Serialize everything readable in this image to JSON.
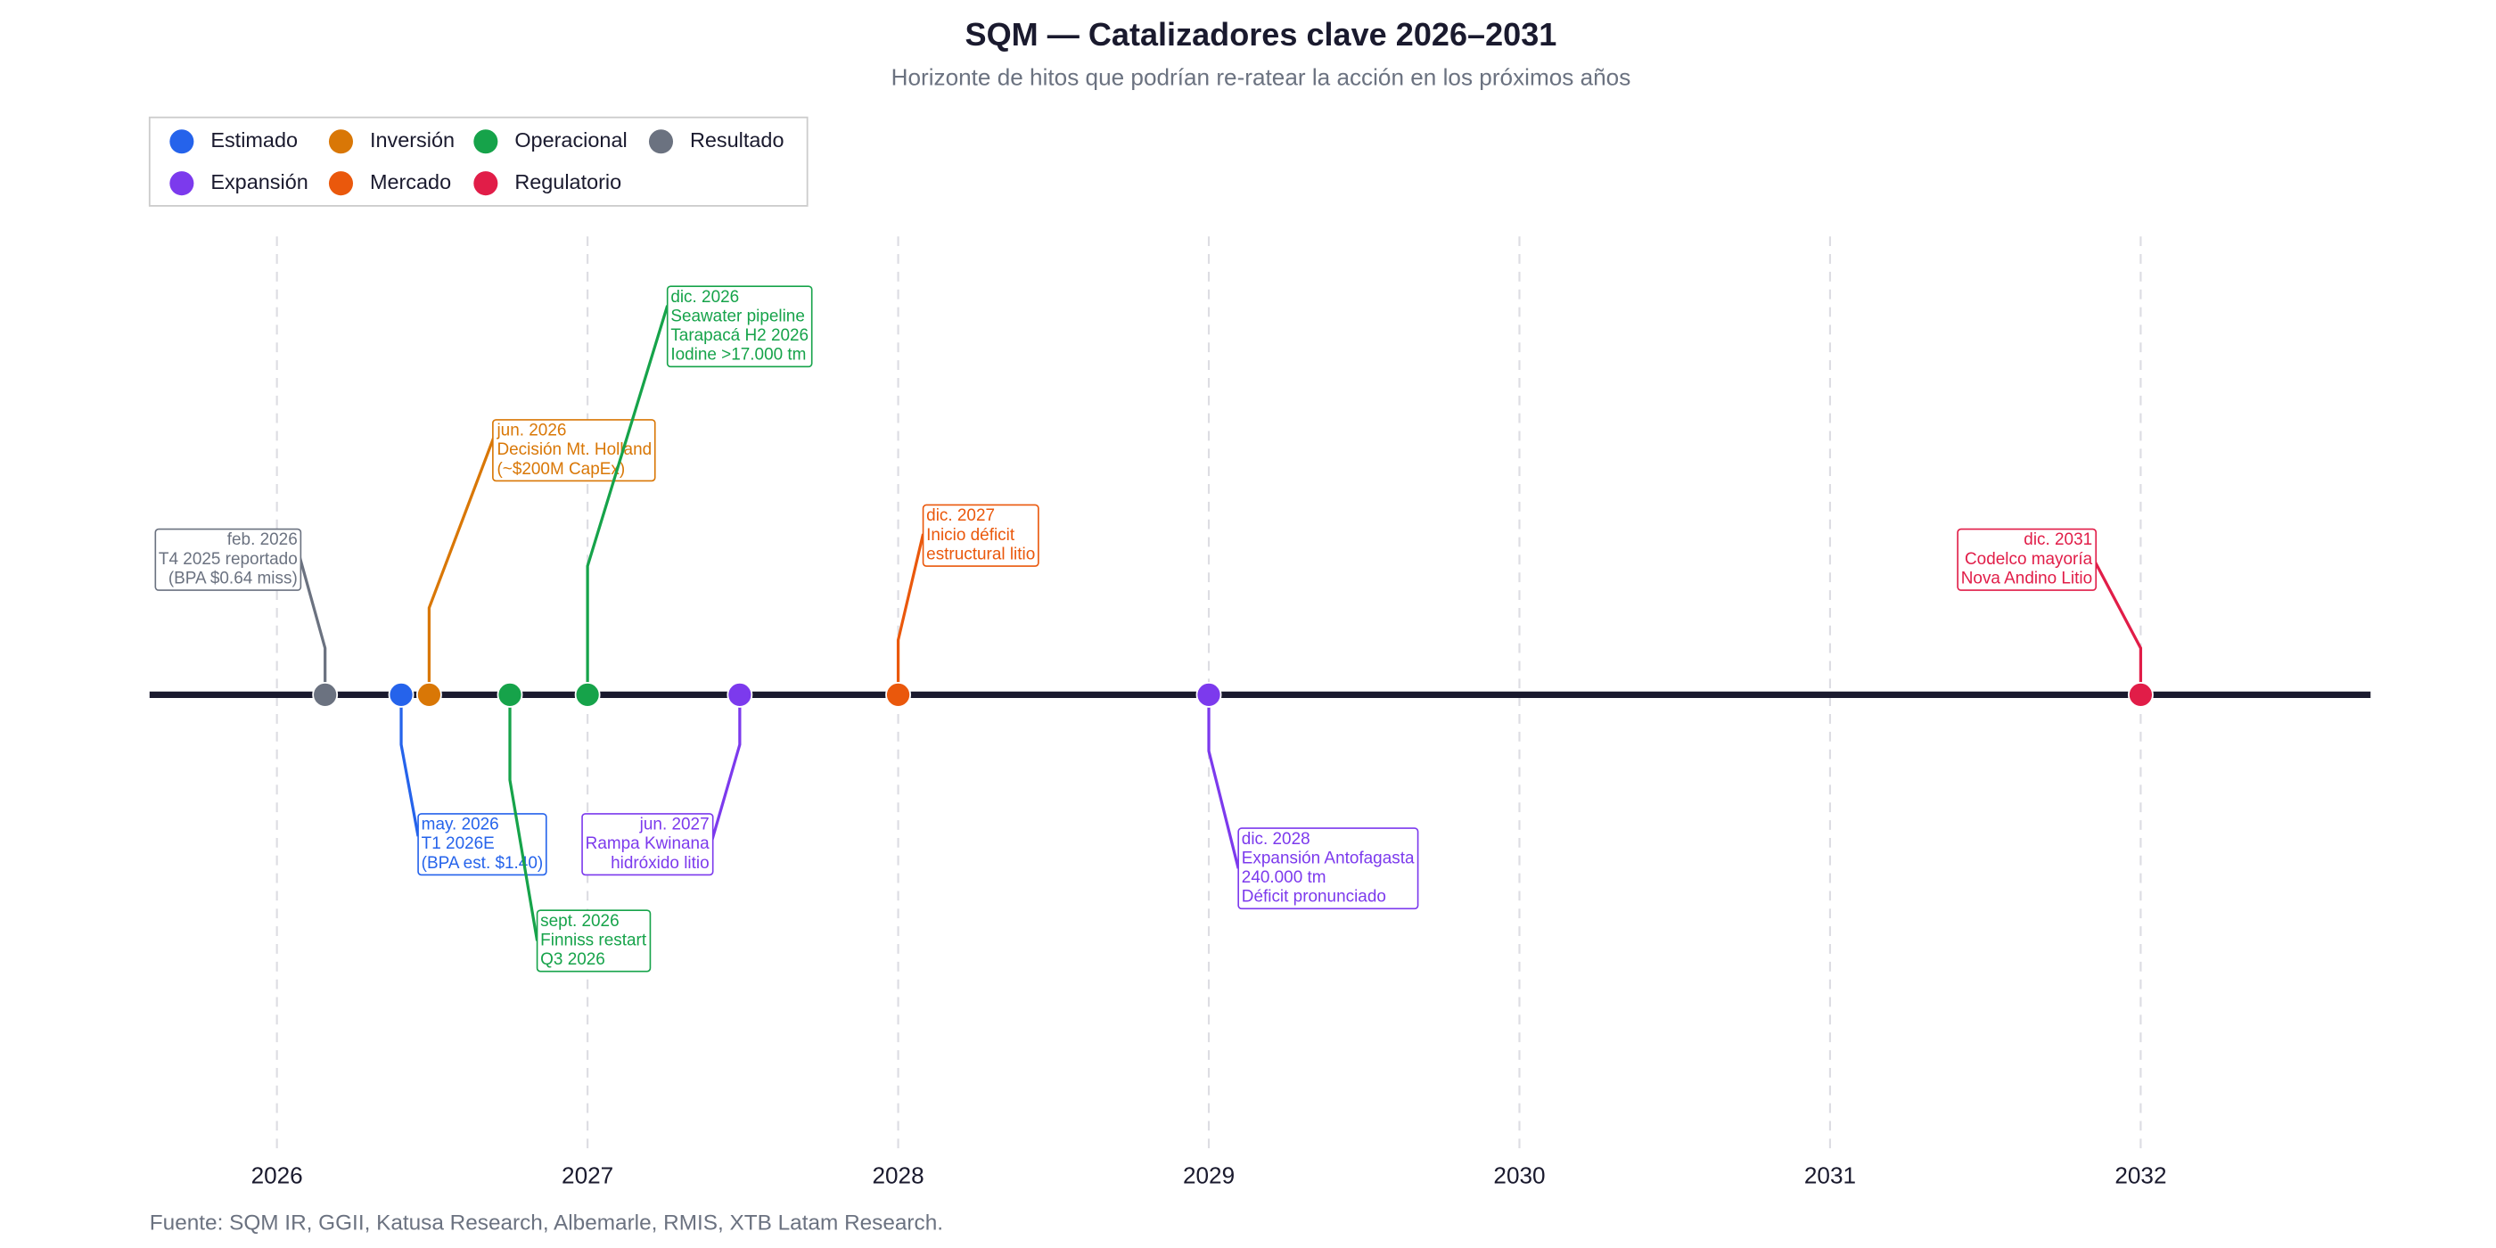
{
  "chart_data": {
    "type": "timeline",
    "title": "SQM — Catalizadores clave 2026–2031",
    "subtitle": "Horizonte de hitos que podrían re-ratear la acción en los próximos años",
    "source": "Fuente: SQM IR, GGII, Katusa Research, Albemarle, RMIS, XTB Latam Research.",
    "xlim": [
      2025.59,
      2032.74
    ],
    "xticks": [
      2026,
      2027,
      2028,
      2029,
      2030,
      2031,
      2032
    ],
    "grid": true,
    "legend": "top-left",
    "series": [
      {
        "name": "Estimado",
        "color": "#2563eb",
        "events": [
          {
            "date": "may. 2026",
            "x": 2026.4,
            "lines": [
              "T1 2026E",
              "(BPA est. $1.40)"
            ]
          }
        ]
      },
      {
        "name": "Inversión",
        "color": "#d97706",
        "events": [
          {
            "date": "jun. 2026",
            "x": 2026.49,
            "lines": [
              "Decisión Mt. Holland",
              "(~$200M CapEx)"
            ]
          }
        ]
      },
      {
        "name": "Operacional",
        "color": "#16a34a",
        "events": [
          {
            "date": "sept. 2026",
            "x": 2026.75,
            "lines": [
              "Finniss restart",
              "Q3 2026"
            ]
          },
          {
            "date": "dic. 2026",
            "x": 2027.0,
            "lines": [
              "Seawater pipeline",
              "Tarapacá H2 2026",
              "Iodine >17.000 tm"
            ]
          }
        ]
      },
      {
        "name": "Resultado",
        "color": "#6b7280",
        "events": [
          {
            "date": "feb. 2026",
            "x": 2026.155,
            "lines": [
              "T4 2025 reportado",
              "(BPA $0.64 miss)"
            ]
          }
        ]
      },
      {
        "name": "Expansión",
        "color": "#7c3aed",
        "events": [
          {
            "date": "jun. 2027",
            "x": 2027.49,
            "lines": [
              "Rampa Kwinana",
              "hidróxido litio"
            ]
          },
          {
            "date": "dic. 2028",
            "x": 2029.0,
            "lines": [
              "Expansión Antofagasta",
              "240.000 tm",
              "Déficit pronunciado"
            ]
          }
        ]
      },
      {
        "name": "Mercado",
        "color": "#ea580c",
        "events": [
          {
            "date": "dic. 2027",
            "x": 2028.0,
            "lines": [
              "Inicio déficit",
              "estructural litio"
            ]
          }
        ]
      },
      {
        "name": "Regulatorio",
        "color": "#e11d48",
        "events": [
          {
            "date": "dic. 2031",
            "x": 2032.0,
            "lines": [
              "Codelco mayoría",
              "Nova Andino Litio"
            ]
          }
        ]
      }
    ]
  }
}
